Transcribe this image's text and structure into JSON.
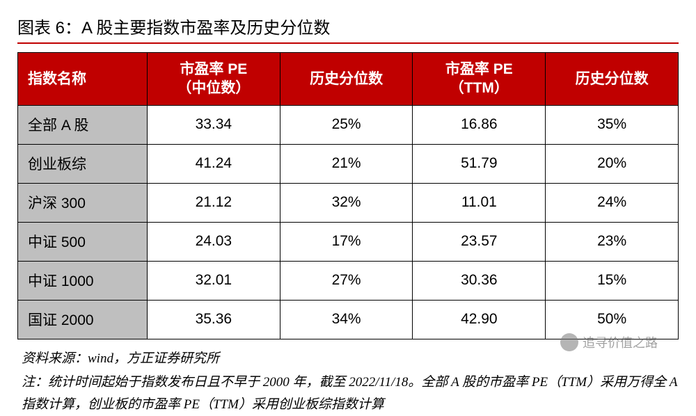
{
  "title": "图表 6：A 股主要指数市盈率及历史分位数",
  "colors": {
    "header_bg": "#c00000",
    "header_text": "#ffffff",
    "name_cell_bg": "#bfbfbf",
    "value_cell_bg": "#ffffff",
    "border": "#000000",
    "title_divider": "#c00000",
    "body_text": "#000000"
  },
  "table": {
    "columns": [
      {
        "label": "指数名称",
        "key": "name",
        "align": "left"
      },
      {
        "label": "市盈率 PE\n（中位数）",
        "key": "pe_median",
        "align": "center"
      },
      {
        "label": "历史分位数",
        "key": "pct_median",
        "align": "center"
      },
      {
        "label": "市盈率 PE\n（TTM）",
        "key": "pe_ttm",
        "align": "center"
      },
      {
        "label": "历史分位数",
        "key": "pct_ttm",
        "align": "center"
      }
    ],
    "rows": [
      {
        "name": "全部 A 股",
        "pe_median": "33.34",
        "pct_median": "25%",
        "pe_ttm": "16.86",
        "pct_ttm": "35%"
      },
      {
        "name": "创业板综",
        "pe_median": "41.24",
        "pct_median": "21%",
        "pe_ttm": "51.79",
        "pct_ttm": "20%"
      },
      {
        "name": "沪深 300",
        "pe_median": "21.12",
        "pct_median": "32%",
        "pe_ttm": "11.01",
        "pct_ttm": "24%"
      },
      {
        "name": "中证 500",
        "pe_median": "24.03",
        "pct_median": "17%",
        "pe_ttm": "23.57",
        "pct_ttm": "23%"
      },
      {
        "name": "中证 1000",
        "pe_median": "32.01",
        "pct_median": "27%",
        "pe_ttm": "30.36",
        "pct_ttm": "15%"
      },
      {
        "name": "国证 2000",
        "pe_median": "35.36",
        "pct_median": "34%",
        "pe_ttm": "42.90",
        "pct_ttm": "50%"
      }
    ]
  },
  "footnotes": {
    "source": "资料来源：wind，方正证券研究所",
    "note": "注：统计时间起始于指数发布日且不早于 2000 年，截至 2022/11/18。全部 A 股的市盈率 PE（TTM）采用万得全 A 指数计算，创业板的市盈率 PE（TTM）采用创业板综指数计算"
  },
  "watermark": {
    "text": "追寻价值之路"
  }
}
